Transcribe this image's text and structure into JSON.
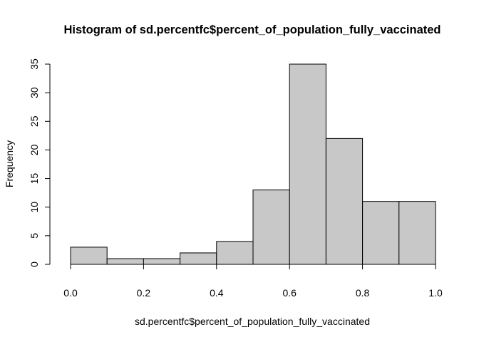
{
  "chart_data": {
    "type": "bar",
    "subtype": "histogram",
    "title": "Histogram of sd.percentfc$percent_of_population_fully_vaccinated",
    "xlabel": "sd.percentfc$percent_of_population_fully_vaccinated",
    "ylabel": "Frequency",
    "bins": [
      {
        "from": 0.0,
        "to": 0.1,
        "count": 3
      },
      {
        "from": 0.1,
        "to": 0.2,
        "count": 1
      },
      {
        "from": 0.2,
        "to": 0.3,
        "count": 1
      },
      {
        "from": 0.3,
        "to": 0.4,
        "count": 2
      },
      {
        "from": 0.4,
        "to": 0.5,
        "count": 4
      },
      {
        "from": 0.5,
        "to": 0.6,
        "count": 13
      },
      {
        "from": 0.6,
        "to": 0.7,
        "count": 35
      },
      {
        "from": 0.7,
        "to": 0.8,
        "count": 22
      },
      {
        "from": 0.8,
        "to": 0.9,
        "count": 11
      },
      {
        "from": 0.9,
        "to": 1.0,
        "count": 11
      }
    ],
    "xlim": [
      0.0,
      1.0
    ],
    "ylim": [
      0,
      35
    ],
    "xticks": [
      "0.0",
      "0.2",
      "0.4",
      "0.6",
      "0.8",
      "1.0"
    ],
    "yticks": [
      "0",
      "5",
      "10",
      "15",
      "20",
      "25",
      "30",
      "35"
    ],
    "bar_fill": "#c8c8c8",
    "bar_stroke": "#000000",
    "grid": false,
    "legend": "none"
  }
}
